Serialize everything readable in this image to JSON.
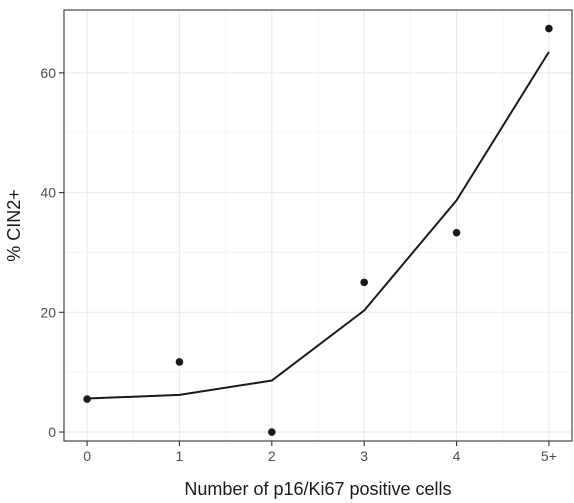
{
  "chart_data": {
    "type": "line",
    "title": "",
    "xlabel": "Number of p16/Ki67 positive cells",
    "ylabel": "% CIN2+",
    "categories": [
      "0",
      "1",
      "2",
      "3",
      "4",
      "5+"
    ],
    "x_ticks": [
      "0",
      "1",
      "2",
      "3",
      "4",
      "5+"
    ],
    "y_ticks": [
      "0",
      "20",
      "40",
      "60"
    ],
    "xlim": [
      -0.25,
      5.25
    ],
    "ylim": [
      -1.5,
      70.5
    ],
    "grid": true,
    "legend": "none",
    "series": [
      {
        "type": "scatter",
        "values": [
          5.5,
          11.7,
          0.0,
          25.0,
          33.3,
          67.4
        ],
        "color": "#1a1a1a"
      },
      {
        "type": "line",
        "values": [
          5.6,
          6.2,
          8.6,
          20.3,
          38.7,
          63.5
        ],
        "color": "#1a1a1a"
      }
    ]
  }
}
